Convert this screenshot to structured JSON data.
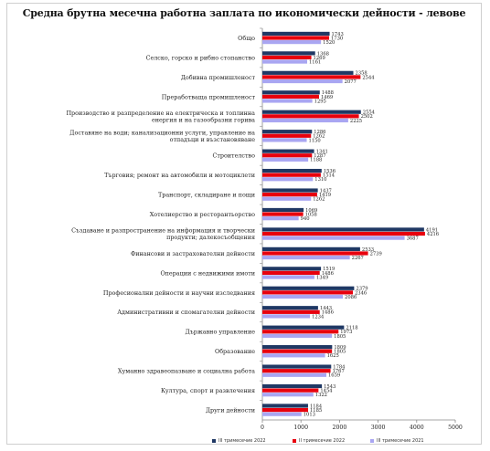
{
  "chart_data": {
    "type": "bar",
    "orientation": "horizontal",
    "title": "Средна брутна месечна работна заплата по икономически дейности - левове",
    "categories": [
      "Общо",
      "Селско, горско и рибно стопанство",
      "Добивна промишленост",
      "Преработваща промишленост",
      "Производство и разпределение на електрическа и топлинна енергия и на газообразни горива",
      "Доставяне на води; канализационни услуги, управление на отпадъци и възстановяване",
      "Строителство",
      "Търговия; ремонт на автомобили и мотоциклети",
      "Транспорт, складиране и пощи",
      "Хотелиерство и ресторантьорство",
      "Създаване и разпространение на информация и творчески продукти; далекосъобщения",
      "Финансови и застрахователни дейности",
      "Операции с недвижими имоти",
      "Професионални дейности и научни изследвания",
      "Административни и спомагателни дейности",
      "Държавно управление",
      "Образование",
      "Хуманно здравеопазване и социална работа",
      "Култура, спорт и развлечения",
      "Други дейности"
    ],
    "category_lines": [
      [
        "Общо"
      ],
      [
        "Селско, горско и рибно стопанство"
      ],
      [
        "Добивна промишленост"
      ],
      [
        "Преработваща промишленост"
      ],
      [
        "Производство и разпределение на електрическа и топлинна",
        "енергия и на газообразни горива"
      ],
      [
        "Доставяне на води; канализационни услуги, управление на",
        "отпадъци и възстановяване"
      ],
      [
        "Строителство"
      ],
      [
        "Търговия; ремонт на автомобили и мотоциклети"
      ],
      [
        "Транспорт, складиране и пощи"
      ],
      [
        "Хотелиерство и ресторантьорство"
      ],
      [
        "Създаване и разпространение на информация и творчески",
        "продукти; далекосъобщения"
      ],
      [
        "Финансови и застрахователни дейности"
      ],
      [
        "Операции с недвижими имоти"
      ],
      [
        "Професионални дейности и научни изследвания"
      ],
      [
        "Административни и спомагателни дейности"
      ],
      [
        "Държавно управление"
      ],
      [
        "Образование"
      ],
      [
        "Хуманно здравеопазване и социална работа"
      ],
      [
        "Култура, спорт и развлечения"
      ],
      [
        "Други дейности"
      ]
    ],
    "series": [
      {
        "name": "III тримесечие 2022",
        "color": "#1f3864",
        "values": [
          1743,
          1368,
          2358,
          1488,
          2554,
          1286,
          1341,
          1536,
          1437,
          1069,
          4191,
          2533,
          1519,
          2379,
          1443,
          2118,
          1809,
          1784,
          1543,
          1184
        ]
      },
      {
        "name": "II тримесечие 2022",
        "color": "#e8000d",
        "values": [
          1730,
          1269,
          2544,
          1469,
          2502,
          1262,
          1287,
          1514,
          1419,
          1058,
          4216,
          2739,
          1486,
          2346,
          1486,
          1973,
          1805,
          1767,
          1454,
          1185
        ]
      },
      {
        "name": "III тримесечие 2021",
        "color": "#a9a6f2",
        "values": [
          1520,
          1161,
          2077,
          1295,
          2225,
          1150,
          1188,
          1310,
          1262,
          940,
          3687,
          2267,
          1349,
          2086,
          1234,
          1805,
          1625,
          1659,
          1322,
          1013
        ]
      }
    ],
    "xlim": [
      0,
      5000
    ],
    "xticks": [
      0,
      1000,
      2000,
      3000,
      4000,
      5000
    ],
    "grid": false,
    "legend_position": "bottom"
  }
}
